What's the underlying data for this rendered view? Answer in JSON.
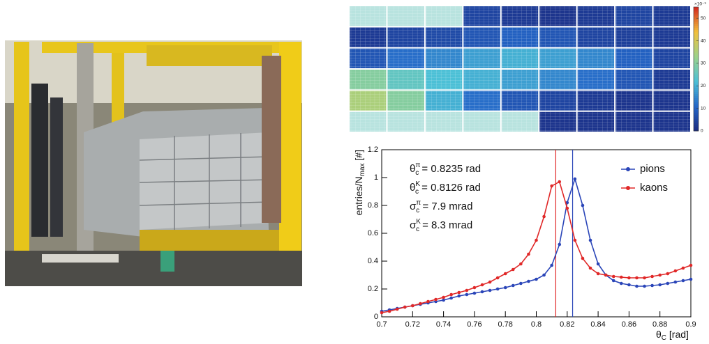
{
  "chart_data": [
    {
      "type": "heatmap",
      "colorbar_label": "×10⁻³",
      "z": [
        [
          null,
          null,
          null,
          5,
          3,
          2,
          3,
          5,
          3
        ],
        [
          3,
          5,
          6,
          8,
          10,
          8,
          5,
          4,
          3
        ],
        [
          8,
          12,
          15,
          18,
          20,
          18,
          15,
          10,
          5
        ],
        [
          30,
          25,
          22,
          20,
          18,
          15,
          12,
          8,
          3
        ],
        [
          35,
          30,
          20,
          12,
          8,
          5,
          3,
          2,
          2
        ],
        [
          null,
          null,
          null,
          null,
          null,
          2,
          2,
          2,
          2
        ]
      ],
      "zlim": [
        0,
        55
      ],
      "zticks": [
        0,
        10,
        20,
        30,
        40,
        50
      ],
      "colorscale": [
        "#1b2a80",
        "#2466c8",
        "#4cc0d6",
        "#9bd28a",
        "#f2c03a",
        "#d3281f"
      ],
      "empty_color": "#b8e3df"
    },
    {
      "type": "line",
      "x": [
        0.7,
        0.705,
        0.71,
        0.715,
        0.72,
        0.725,
        0.73,
        0.735,
        0.74,
        0.745,
        0.75,
        0.755,
        0.76,
        0.765,
        0.77,
        0.775,
        0.78,
        0.785,
        0.79,
        0.795,
        0.8,
        0.805,
        0.81,
        0.815,
        0.82,
        0.825,
        0.83,
        0.835,
        0.84,
        0.845,
        0.85,
        0.855,
        0.86,
        0.865,
        0.87,
        0.875,
        0.88,
        0.885,
        0.89,
        0.895,
        0.9
      ],
      "series": [
        {
          "name": "pions",
          "color": "#2a45b8",
          "values": [
            0.04,
            0.05,
            0.06,
            0.07,
            0.08,
            0.09,
            0.1,
            0.11,
            0.12,
            0.135,
            0.15,
            0.16,
            0.17,
            0.18,
            0.19,
            0.2,
            0.21,
            0.225,
            0.24,
            0.255,
            0.27,
            0.3,
            0.37,
            0.52,
            0.82,
            0.99,
            0.8,
            0.55,
            0.38,
            0.3,
            0.26,
            0.24,
            0.23,
            0.22,
            0.22,
            0.225,
            0.23,
            0.24,
            0.25,
            0.26,
            0.27
          ]
        },
        {
          "name": "kaons",
          "color": "#e02828",
          "values": [
            0.03,
            0.04,
            0.055,
            0.07,
            0.08,
            0.095,
            0.11,
            0.125,
            0.14,
            0.16,
            0.175,
            0.19,
            0.21,
            0.23,
            0.25,
            0.28,
            0.31,
            0.34,
            0.38,
            0.45,
            0.55,
            0.72,
            0.94,
            0.97,
            0.78,
            0.55,
            0.42,
            0.35,
            0.31,
            0.3,
            0.29,
            0.285,
            0.28,
            0.28,
            0.28,
            0.29,
            0.3,
            0.31,
            0.33,
            0.35,
            0.37
          ]
        }
      ],
      "vlines": [
        {
          "x": 0.8235,
          "color": "#2a45b8"
        },
        {
          "x": 0.8126,
          "color": "#e02828"
        }
      ],
      "xlim": [
        0.7,
        0.9
      ],
      "xticks": [
        0.7,
        0.72,
        0.74,
        0.76,
        0.78,
        0.8,
        0.82,
        0.84,
        0.86,
        0.88,
        0.9
      ],
      "ylim": [
        0,
        1.2
      ],
      "yticks": [
        0,
        0.2,
        0.4,
        0.6,
        0.8,
        1,
        1.2
      ],
      "xlabel": {
        "symbol": "θ",
        "sub": "C",
        "text": " [rad]"
      },
      "ylabel": {
        "text": "entries/N",
        "sub": "max",
        "after": " [#]"
      },
      "annotations": [
        {
          "symbol": "θ",
          "sup": "π",
          "sub": "c",
          "text": " = 0.8235 rad"
        },
        {
          "symbol": "θ",
          "sup": "K",
          "sub": "c",
          "text": " = 0.8126 rad"
        },
        {
          "symbol": "σ",
          "sup": "π",
          "sub": "c",
          "text": " = 7.9 mrad"
        },
        {
          "symbol": "σ",
          "sup": "K",
          "sub": "c",
          "text": " = 8.3 mrad"
        }
      ],
      "legend": "upper right"
    }
  ]
}
